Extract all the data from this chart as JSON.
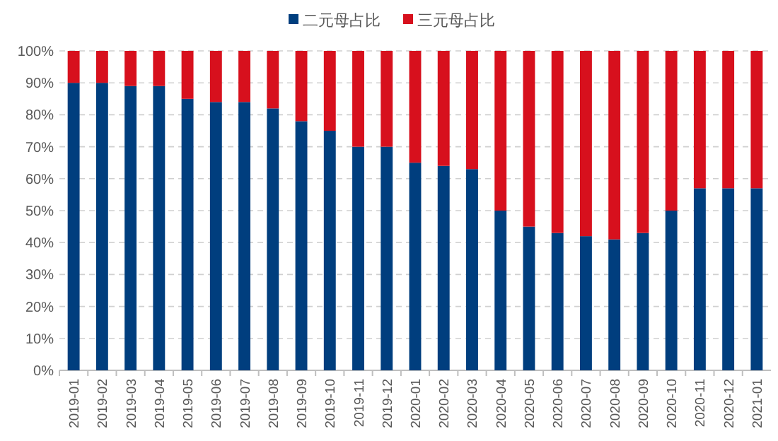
{
  "chart_data": {
    "type": "bar",
    "stacked": true,
    "grid": "y",
    "legend": "top",
    "categories": [
      "2019-01",
      "2019-02",
      "2019-03",
      "2019-04",
      "2019-05",
      "2019-06",
      "2019-07",
      "2019-08",
      "2019-09",
      "2019-10",
      "2019-11",
      "2019-12",
      "2020-01",
      "2020-02",
      "2020-03",
      "2020-04",
      "2020-05",
      "2020-06",
      "2020-07",
      "2020-08",
      "2020-09",
      "2020-10",
      "2020-11",
      "2020-12",
      "2021-01"
    ],
    "series": [
      {
        "name": "二元母占比",
        "color": "#003e7e",
        "values": [
          90,
          90,
          89,
          89,
          85,
          84,
          84,
          82,
          78,
          75,
          70,
          70,
          65,
          64,
          63,
          50,
          45,
          43,
          42,
          41,
          43,
          50,
          57,
          57,
          57
        ]
      },
      {
        "name": "三元母占比",
        "color": "#d7101d",
        "values": [
          10,
          10,
          11,
          11,
          15,
          16,
          16,
          18,
          22,
          25,
          30,
          30,
          35,
          36,
          37,
          50,
          55,
          57,
          58,
          59,
          57,
          50,
          43,
          43,
          43
        ]
      }
    ],
    "ylim": [
      0,
      100
    ],
    "yticks": [
      {
        "value": 0,
        "label": "0%"
      },
      {
        "value": 10,
        "label": "10%"
      },
      {
        "value": 20,
        "label": "20%"
      },
      {
        "value": 30,
        "label": "30%"
      },
      {
        "value": 40,
        "label": "40%"
      },
      {
        "value": 50,
        "label": "50%"
      },
      {
        "value": 60,
        "label": "60%"
      },
      {
        "value": 70,
        "label": "70%"
      },
      {
        "value": 80,
        "label": "80%"
      },
      {
        "value": 90,
        "label": "90%"
      },
      {
        "value": 100,
        "label": "100%"
      }
    ]
  }
}
